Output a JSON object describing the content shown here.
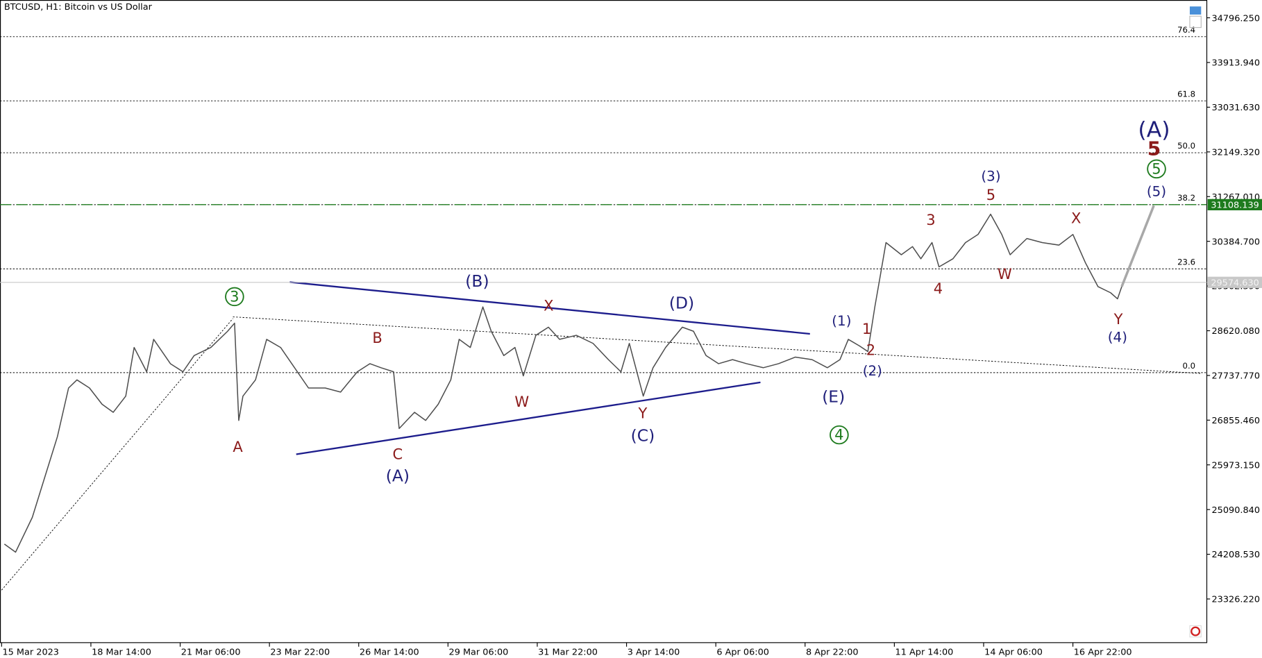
{
  "header": "BTCUSD, H1:  Bitcoin vs US Dollar",
  "chart_data": {
    "type": "line",
    "color": "#4d4d4d",
    "x": [
      2,
      10,
      22,
      31,
      40,
      48,
      54,
      63,
      72,
      80,
      89,
      95,
      104,
      109,
      121,
      130,
      138,
      150,
      162,
      167,
      170,
      173,
      182,
      190,
      200,
      208,
      220,
      232,
      243,
      255,
      264,
      272,
      281,
      285,
      296,
      304,
      313,
      322,
      328,
      336,
      345,
      351,
      360,
      368,
      374,
      383,
      392,
      400,
      412,
      424,
      435,
      444,
      450,
      460,
      467,
      476,
      488,
      496,
      505,
      514,
      524,
      534,
      546,
      557,
      569,
      581,
      592,
      601,
      607,
      615,
      621,
      626,
      630,
      634,
      645,
      653,
      659,
      667,
      672,
      682,
      691,
      700,
      709,
      717,
      723,
      735,
      746,
      758,
      768,
      777,
      786,
      795,
      800,
      803
    ],
    "values": [
      24410,
      24250,
      24937,
      25735,
      26530,
      27490,
      27650,
      27490,
      27170,
      27010,
      27330,
      28290,
      27810,
      28450,
      27970,
      27810,
      28130,
      28290,
      28610,
      28770,
      26850,
      27330,
      27650,
      28450,
      28290,
      27970,
      27490,
      27490,
      27410,
      27810,
      27970,
      27890,
      27810,
      26690,
      27010,
      26850,
      27170,
      27650,
      28450,
      28290,
      29090,
      28610,
      28130,
      28290,
      27730,
      28530,
      28690,
      28450,
      28530,
      28370,
      28050,
      27810,
      28370,
      27330,
      27890,
      28290,
      28690,
      28610,
      28130,
      27970,
      28050,
      27970,
      27890,
      27970,
      28100,
      28050,
      27890,
      28050,
      28450,
      28320,
      28210,
      29090,
      29720,
      30360,
      30120,
      30280,
      30040,
      30360,
      29880,
      30040,
      30360,
      30520,
      30920,
      30520,
      30120,
      30440,
      30360,
      30310,
      30520,
      29960,
      29490,
      29370,
      29250,
      29490
    ],
    "xlim": [
      -1.16,
      864
    ],
    "ylim": [
      22464.5,
      35147.2
    ],
    "xticks": [
      {
        "value": 0,
        "label": "15 Mar 2023"
      },
      {
        "value": 64,
        "label": "18 Mar 14:00"
      },
      {
        "value": 128,
        "label": "21 Mar 06:00"
      },
      {
        "value": 192,
        "label": "23 Mar 22:00"
      },
      {
        "value": 256,
        "label": "26 Mar 14:00"
      },
      {
        "value": 320,
        "label": "29 Mar 06:00"
      },
      {
        "value": 384,
        "label": "31 Mar 22:00"
      },
      {
        "value": 448,
        "label": "3 Apr 14:00"
      },
      {
        "value": 512,
        "label": "6 Apr 06:00"
      },
      {
        "value": 576,
        "label": "8 Apr 22:00"
      },
      {
        "value": 640,
        "label": "11 Apr 14:00"
      },
      {
        "value": 704,
        "label": "14 Apr 06:00"
      },
      {
        "value": 768,
        "label": "16 Apr 22:00"
      }
    ],
    "yticks": [
      {
        "value": 34796.25,
        "label": "34796.250"
      },
      {
        "value": 33913.94,
        "label": "33913.940"
      },
      {
        "value": 33031.63,
        "label": "33031.630"
      },
      {
        "value": 32149.32,
        "label": "32149.320"
      },
      {
        "value": 31267.01,
        "label": "31267.010"
      },
      {
        "value": 30384.7,
        "label": "30384.700"
      },
      {
        "value": 29502.39,
        "label": "29502.390"
      },
      {
        "value": 28620.08,
        "label": "28620.080"
      },
      {
        "value": 27737.77,
        "label": "27737.770"
      },
      {
        "value": 26855.46,
        "label": "26855.460"
      },
      {
        "value": 25973.15,
        "label": "25973.150"
      },
      {
        "value": 25090.84,
        "label": "25090.840"
      },
      {
        "value": 24208.53,
        "label": "24208.530"
      },
      {
        "value": 23326.22,
        "label": "23326.220"
      }
    ],
    "fib_levels": [
      {
        "value": 34424,
        "label": "76.4"
      },
      {
        "value": 33157,
        "label": "61.8"
      },
      {
        "value": 32133,
        "label": "50.0"
      },
      {
        "value": 31108,
        "label": "38.2"
      },
      {
        "value": 29841,
        "label": "23.6"
      },
      {
        "value": 27793,
        "label": "0.0"
      }
    ],
    "price_lines": [
      {
        "value": 31108.139,
        "color": "#1e7b1e"
      },
      {
        "value": 29574.63,
        "label": "29574.630",
        "color": "#c8c8c8"
      }
    ],
    "projection": {
      "x": [
        803,
        826
      ],
      "values": [
        29490,
        31090
      ],
      "color": "#a8a8a8"
    }
  },
  "annotations": [
    "(B)",
    "(D)",
    "(A)",
    "(C)",
    "(E)",
    "(1)",
    "(2)",
    "(3)",
    "(4)",
    "(5)",
    "(A)",
    "B",
    "X",
    "W",
    "Y",
    "A",
    "C",
    "1",
    "2",
    "3",
    "4",
    "5",
    "W",
    "X",
    "Y",
    "5",
    "3",
    "4",
    "5"
  ]
}
